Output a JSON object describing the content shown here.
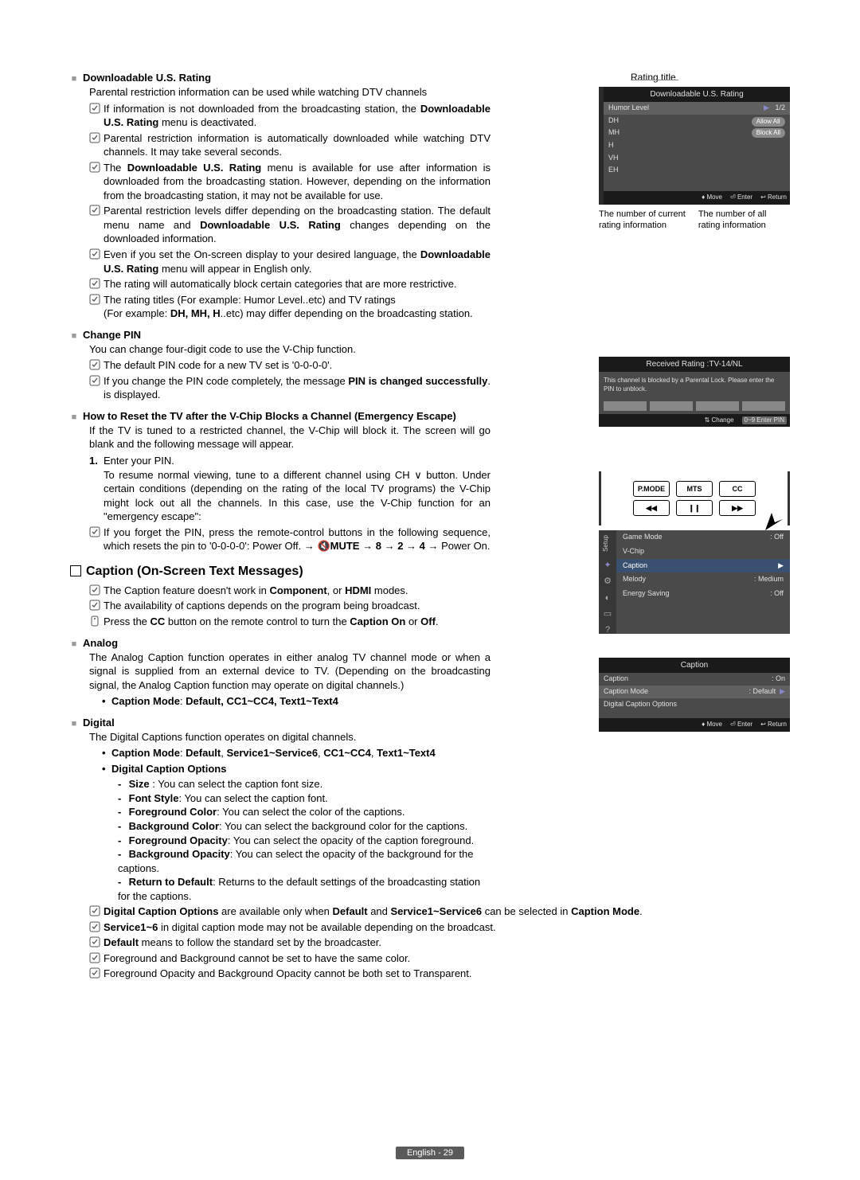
{
  "sections": {
    "dlus": {
      "heading": "Downloadable U.S. Rating",
      "desc": "Parental restriction information can be used while watching DTV channels",
      "notes": [
        "If information is not downloaded from the broadcasting station, the <b>Downloadable U.S. Rating</b> menu is deactivated.",
        "Parental restriction information is automatically downloaded while watching DTV channels. It may take several seconds.",
        "The <b>Downloadable U.S. Rating</b> menu is available for use after information is downloaded from the broadcasting station. However, depending on the information from the broadcasting station, it may not be available for use.",
        "Parental restriction levels differ depending on the broadcasting station. The default menu name and <b>Downloadable U.S. Rating</b> changes depending on the downloaded information.",
        "Even if you set the On-screen display to your desired language, the <b>Downloadable U.S. Rating</b> menu will appear in English only.",
        "The rating will automatically block certain categories that are more restrictive.",
        "The rating titles (For example: Humor Level..etc) and TV ratings<br>(For example: <b>DH, MH, H</b>..etc) may differ depending on the broadcasting station."
      ]
    },
    "pin": {
      "heading": "Change PIN",
      "desc": "You can change four-digit code to use the V-Chip function.",
      "notes": [
        "The default PIN code for a new TV set is '0-0-0-0'.",
        "If you change the PIN code completely, the message <b>PIN is changed successfully</b>. is displayed."
      ]
    },
    "reset": {
      "heading": "How to Reset the TV after the V-Chip Blocks a Channel (Emergency Escape)",
      "desc": "If the TV is tuned to a restricted channel, the V-Chip will block it. The screen will go blank and the following message will appear.",
      "step_num": "1.",
      "step1": "Enter your PIN.",
      "step1_cont": "To resume normal viewing, tune to a different channel using CH ∨ button. Under certain conditions (depending on the rating of the local TV programs) the V-Chip might lock out all the channels. In this case, use the V-Chip function for an \"emergency escape\":",
      "note": "If you forget the PIN, press the remote-control buttons in the following sequence, which resets the pin to '0-0-0-0': Power Off. → 🔇<b>MUTE</b> → <b>8</b> → <b>2</b> → <b>4</b> → Power On."
    },
    "caption": {
      "title": "Caption (On-Screen Text Messages)",
      "top_notes": [
        "The Caption feature doesn't work in <b>Component</b>, or <b>HDMI</b> modes.",
        "The availability of captions depends on the program being broadcast."
      ],
      "press_note": "Press the <b>CC</b> button on the remote control to turn the <b>Caption On</b> or <b>Off</b>."
    },
    "analog": {
      "heading": "Analog",
      "desc": "The Analog Caption function operates in either analog TV channel mode or when a signal is supplied from an external device to TV. (Depending on the broadcasting signal, the Analog Caption function may operate on digital channels.)",
      "bullet": "<b>Caption Mode</b>: <b>Default, CC1~CC4, Text1~Text4</b>"
    },
    "digital": {
      "heading": "Digital",
      "desc": "The Digital Captions function operates on digital channels.",
      "b1": "<b>Caption Mode</b>: <b>Default</b>, <b>Service1~Service6</b>, <b>CC1~CC4</b>, <b>Text1~Text4</b>",
      "b2": "<b>Digital Caption Options</b>",
      "opts": [
        "<b>Size</b> : You can select the caption font size.",
        "<b>Font Style</b>: You can select the caption font.",
        "<b>Foreground Color</b>: You can select the color of the captions.",
        "<b>Background Color</b>: You can select the background color for the captions.",
        "<b>Foreground Opacity</b>: You can select the opacity of the caption foreground.",
        "<b>Background Opacity</b>: You can select the opacity of the background for the captions.",
        "<b>Return to Default</b>: Returns to the default settings of the broadcasting station for the captions."
      ],
      "end_notes": [
        "<b>Digital Caption Options</b> are available only when <b>Default</b> and <b>Service1~Service6</b> can be selected in <b>Caption Mode</b>.",
        "<b>Service1~6</b> in digital caption mode may not be available depending on the broadcast.",
        "<b>Default</b> means to follow the standard set by the broadcaster.",
        "Foreground and Background cannot be set to have the same color.",
        "Foreground Opacity and Background Opacity cannot be both set to Transparent."
      ]
    }
  },
  "osd": {
    "rating_title_label": "Rating title",
    "dlus": {
      "title": "Downloadable U.S. Rating",
      "row1_l": "Humor Level",
      "row1_r": "1/2",
      "rows": [
        "DH",
        "MH",
        "H",
        "VH",
        "EH"
      ],
      "btn_allow": "Allow All",
      "btn_block": "Block All",
      "foot_move": "♦ Move",
      "foot_enter": "⏎ Enter",
      "foot_return": "↩ Return"
    },
    "labels": {
      "left": "The number of current rating information",
      "right": "The number of all rating information"
    },
    "blocked": {
      "title": "Received Rating :TV-14/NL",
      "msg": "This channel is blocked by a Parental Lock. Please enter the PIN to unblock.",
      "foot_change": "⇅ Change",
      "foot_enter": "0~9 Enter PIN"
    },
    "remote": {
      "pmode": "P.MODE",
      "mts": "MTS",
      "cc": "CC",
      "rw": "◀◀",
      "pause": "❙❙",
      "ff": "▶▶"
    },
    "setup_menu": {
      "sidebar_label": "Setup",
      "rows": [
        {
          "l": "Game Mode",
          "r": ": Off",
          "hl": false
        },
        {
          "l": "V-Chip",
          "r": "",
          "hl": false
        },
        {
          "l": "Caption",
          "r": "▶",
          "hl": true
        },
        {
          "l": "Melody",
          "r": ": Medium",
          "hl": false
        },
        {
          "l": "Energy Saving",
          "r": ": Off",
          "hl": false
        }
      ]
    },
    "caption_menu": {
      "title": "Caption",
      "rows": [
        {
          "l": "Caption",
          "r": ": On"
        },
        {
          "l": "Caption Mode",
          "r": ": Default",
          "hl": true
        },
        {
          "l": "Digital Caption Options",
          "r": ""
        }
      ],
      "foot_move": "♦ Move",
      "foot_enter": "⏎ Enter",
      "foot_return": "↩ Return"
    }
  },
  "page_num": "English - 29",
  "colors": {
    "osd_bg": "#4a4a4a",
    "osd_title_bg": "#1a1a1a",
    "osd_hl": "#3a5070",
    "text": "#000",
    "grey_sq": "#9a9a9a"
  }
}
